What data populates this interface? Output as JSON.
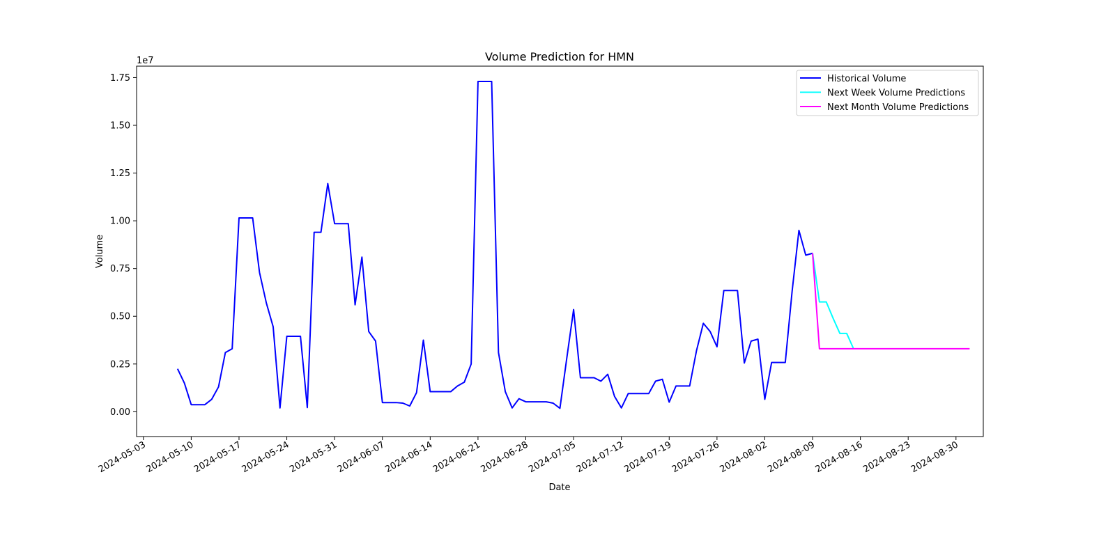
{
  "chart_data": {
    "type": "line",
    "title": "Volume Prediction for HMN",
    "xlabel": "Date",
    "ylabel": "Volume",
    "y_scale_note": "1e7",
    "ylim": [
      -0.13,
      1.81
    ],
    "xlim": [
      "2024-05-02",
      "2024-09-03"
    ],
    "grid": false,
    "legend_position": "top-right",
    "x_ticks": [
      "2024-05-03",
      "2024-05-10",
      "2024-05-17",
      "2024-05-24",
      "2024-05-31",
      "2024-06-07",
      "2024-06-14",
      "2024-06-21",
      "2024-06-28",
      "2024-07-05",
      "2024-07-12",
      "2024-07-19",
      "2024-07-26",
      "2024-08-02",
      "2024-08-09",
      "2024-08-16",
      "2024-08-23",
      "2024-08-30"
    ],
    "y_ticks": [
      0.0,
      0.25,
      0.5,
      0.75,
      1.0,
      1.25,
      1.5,
      1.75
    ],
    "y_tick_labels": [
      "0.00",
      "0.25",
      "0.50",
      "0.75",
      "1.00",
      "1.25",
      "1.50",
      "1.75"
    ],
    "series": [
      {
        "name": "Historical Volume",
        "color": "#0000ff",
        "points": [
          [
            "2024-05-08",
            0.225
          ],
          [
            "2024-05-09",
            0.15
          ],
          [
            "2024-05-10",
            0.037
          ],
          [
            "2024-05-12",
            0.037
          ],
          [
            "2024-05-13",
            0.065
          ],
          [
            "2024-05-14",
            0.13
          ],
          [
            "2024-05-15",
            0.31
          ],
          [
            "2024-05-16",
            0.33
          ],
          [
            "2024-05-17",
            1.015
          ],
          [
            "2024-05-19",
            1.015
          ],
          [
            "2024-05-20",
            0.73
          ],
          [
            "2024-05-21",
            0.57
          ],
          [
            "2024-05-22",
            0.445
          ],
          [
            "2024-05-23",
            0.02
          ],
          [
            "2024-05-24",
            0.395
          ],
          [
            "2024-05-26",
            0.395
          ],
          [
            "2024-05-27",
            0.022
          ],
          [
            "2024-05-28",
            0.94
          ],
          [
            "2024-05-29",
            0.94
          ],
          [
            "2024-05-30",
            1.195
          ],
          [
            "2024-05-31",
            0.985
          ],
          [
            "2024-06-02",
            0.985
          ],
          [
            "2024-06-03",
            0.56
          ],
          [
            "2024-06-04",
            0.81
          ],
          [
            "2024-06-05",
            0.42
          ],
          [
            "2024-06-06",
            0.37
          ],
          [
            "2024-06-07",
            0.048
          ],
          [
            "2024-06-09",
            0.048
          ],
          [
            "2024-06-10",
            0.045
          ],
          [
            "2024-06-11",
            0.03
          ],
          [
            "2024-06-12",
            0.1
          ],
          [
            "2024-06-13",
            0.375
          ],
          [
            "2024-06-14",
            0.105
          ],
          [
            "2024-06-17",
            0.105
          ],
          [
            "2024-06-18",
            0.135
          ],
          [
            "2024-06-19",
            0.155
          ],
          [
            "2024-06-20",
            0.25
          ],
          [
            "2024-06-21",
            1.73
          ],
          [
            "2024-06-23",
            1.73
          ],
          [
            "2024-06-24",
            0.31
          ],
          [
            "2024-06-25",
            0.105
          ],
          [
            "2024-06-26",
            0.02
          ],
          [
            "2024-06-27",
            0.068
          ],
          [
            "2024-06-28",
            0.052
          ],
          [
            "2024-07-01",
            0.052
          ],
          [
            "2024-07-02",
            0.045
          ],
          [
            "2024-07-03",
            0.018
          ],
          [
            "2024-07-04",
            0.28
          ],
          [
            "2024-07-05",
            0.535
          ],
          [
            "2024-07-06",
            0.178
          ],
          [
            "2024-07-08",
            0.178
          ],
          [
            "2024-07-09",
            0.16
          ],
          [
            "2024-07-10",
            0.196
          ],
          [
            "2024-07-11",
            0.08
          ],
          [
            "2024-07-12",
            0.02
          ],
          [
            "2024-07-13",
            0.095
          ],
          [
            "2024-07-16",
            0.095
          ],
          [
            "2024-07-17",
            0.16
          ],
          [
            "2024-07-18",
            0.17
          ],
          [
            "2024-07-19",
            0.05
          ],
          [
            "2024-07-20",
            0.135
          ],
          [
            "2024-07-22",
            0.135
          ],
          [
            "2024-07-23",
            0.32
          ],
          [
            "2024-07-24",
            0.463
          ],
          [
            "2024-07-25",
            0.42
          ],
          [
            "2024-07-26",
            0.34
          ],
          [
            "2024-07-27",
            0.635
          ],
          [
            "2024-07-29",
            0.635
          ],
          [
            "2024-07-30",
            0.255
          ],
          [
            "2024-07-31",
            0.37
          ],
          [
            "2024-08-01",
            0.38
          ],
          [
            "2024-08-02",
            0.065
          ],
          [
            "2024-08-03",
            0.258
          ],
          [
            "2024-08-05",
            0.258
          ],
          [
            "2024-08-06",
            0.63
          ],
          [
            "2024-08-07",
            0.95
          ],
          [
            "2024-08-08",
            0.82
          ],
          [
            "2024-08-09",
            0.83
          ]
        ]
      },
      {
        "name": "Next Week Volume Predictions",
        "color": "#00ffff",
        "points": [
          [
            "2024-08-09",
            0.83
          ],
          [
            "2024-08-10",
            0.575
          ],
          [
            "2024-08-11",
            0.575
          ],
          [
            "2024-08-12",
            0.49
          ],
          [
            "2024-08-13",
            0.41
          ],
          [
            "2024-08-14",
            0.41
          ],
          [
            "2024-08-15",
            0.33
          ]
        ]
      },
      {
        "name": "Next Month Volume Predictions",
        "color": "#ff00ff",
        "points": [
          [
            "2024-08-09",
            0.83
          ],
          [
            "2024-08-10",
            0.33
          ],
          [
            "2024-09-01",
            0.33
          ]
        ]
      }
    ]
  }
}
